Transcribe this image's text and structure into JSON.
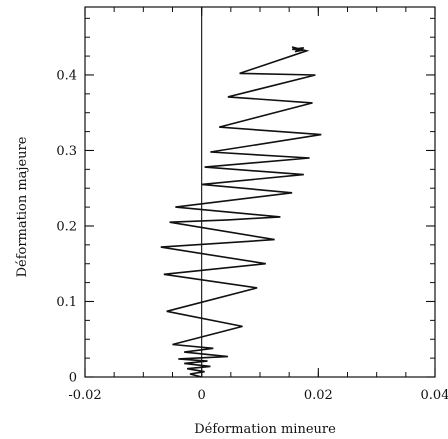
{
  "chart_data": {
    "type": "line",
    "title": "",
    "xlabel": "Déformation mineure",
    "ylabel": "Déformation majeure",
    "xlim": [
      -0.02,
      0.04
    ],
    "ylim": [
      0,
      0.49
    ],
    "xticks": [
      -0.02,
      0,
      0.02,
      0.04
    ],
    "xtick_labels": [
      "-0.02",
      "0",
      "0.02",
      "0.04"
    ],
    "yticks": [
      0,
      0.1,
      0.2,
      0.3,
      0.4
    ],
    "ytick_labels": [
      "0",
      "0.1",
      "0.2",
      "0.3",
      "0.4"
    ],
    "x_minor_step": 0.005,
    "y_minor_step": 0.025,
    "grid": false,
    "reference_lines": [
      {
        "axis": "x",
        "value": 0
      }
    ],
    "series": [
      {
        "values": [
          [
            0.0,
            0.0
          ],
          [
            -0.002,
            0.004
          ],
          [
            0.0005,
            0.007
          ],
          [
            -0.0025,
            0.011
          ],
          [
            0.0015,
            0.014
          ],
          [
            -0.003,
            0.018
          ],
          [
            0.001,
            0.021
          ],
          [
            -0.004,
            0.024
          ],
          [
            0.0045,
            0.027
          ],
          [
            -0.003,
            0.033
          ],
          [
            0.002,
            0.038
          ],
          [
            -0.005,
            0.043
          ],
          [
            0.007,
            0.067
          ],
          [
            -0.006,
            0.087
          ],
          [
            0.0095,
            0.118
          ],
          [
            -0.0065,
            0.136
          ],
          [
            0.011,
            0.15
          ],
          [
            -0.007,
            0.172
          ],
          [
            0.0125,
            0.182
          ],
          [
            -0.0055,
            0.205
          ],
          [
            0.0045,
            0.208
          ],
          [
            0.0135,
            0.212
          ],
          [
            -0.0045,
            0.225
          ],
          [
            0.0155,
            0.244
          ],
          [
            0.0,
            0.255
          ],
          [
            0.0175,
            0.268
          ],
          [
            0.0005,
            0.278
          ],
          [
            0.0185,
            0.29
          ],
          [
            0.0015,
            0.298
          ],
          [
            0.0205,
            0.321
          ],
          [
            0.003,
            0.331
          ],
          [
            0.019,
            0.363
          ],
          [
            0.0045,
            0.371
          ],
          [
            0.0195,
            0.4
          ],
          [
            0.0065,
            0.402
          ],
          [
            0.018,
            0.432
          ],
          [
            0.0155,
            0.437
          ],
          [
            0.0165,
            0.434
          ],
          [
            0.0155,
            0.434
          ],
          [
            0.0175,
            0.436
          ],
          [
            0.016,
            0.431
          ],
          [
            0.0175,
            0.433
          ]
        ]
      }
    ]
  }
}
